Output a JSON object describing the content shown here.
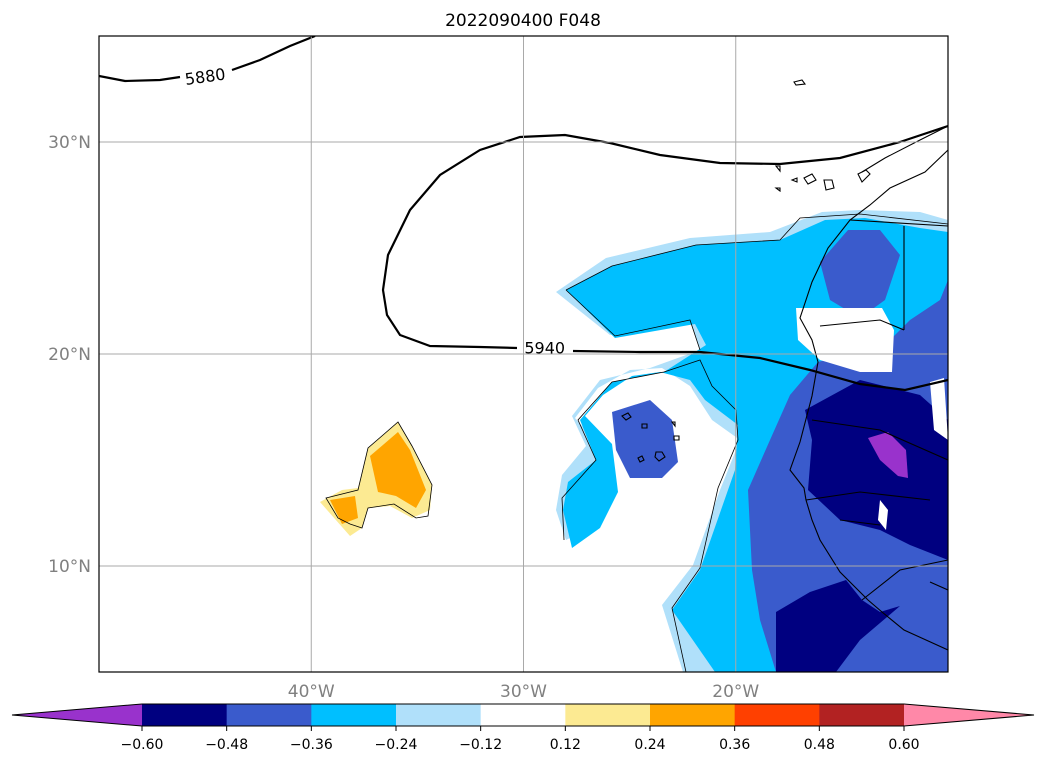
{
  "title": "2022090400 F048",
  "map": {
    "extent": {
      "lon": [
        -50,
        -10
      ],
      "lat": [
        5,
        35
      ]
    },
    "lat_ticks": [
      {
        "value": 30,
        "label": "30°N"
      },
      {
        "value": 20,
        "label": "20°N"
      },
      {
        "value": 10,
        "label": "10°N"
      }
    ],
    "lon_ticks": [
      {
        "value": -40,
        "label": "40°W"
      },
      {
        "value": -30,
        "label": "30°W"
      },
      {
        "value": -20,
        "label": "20°W"
      }
    ],
    "grid": true,
    "contour_labels": [
      {
        "text": "5880",
        "lon": -45.0,
        "lat": 33.1
      },
      {
        "text": "5940",
        "lon": -29.0,
        "lat": 20.3
      }
    ]
  },
  "colorbar": {
    "orientation": "horizontal",
    "extend": "both",
    "colors": [
      "#9932cc",
      "#000080",
      "#3a5bcc",
      "#00bfff",
      "#b0e0fa",
      "#ffffff",
      "#fcea92",
      "#ffa500",
      "#ff4000",
      "#b22222",
      "#ff88a8"
    ],
    "tick_labels": [
      "−0.60",
      "−0.48",
      "−0.36",
      "−0.24",
      "−0.12",
      "0.12",
      "0.24",
      "0.36",
      "0.48",
      "0.60"
    ]
  }
}
